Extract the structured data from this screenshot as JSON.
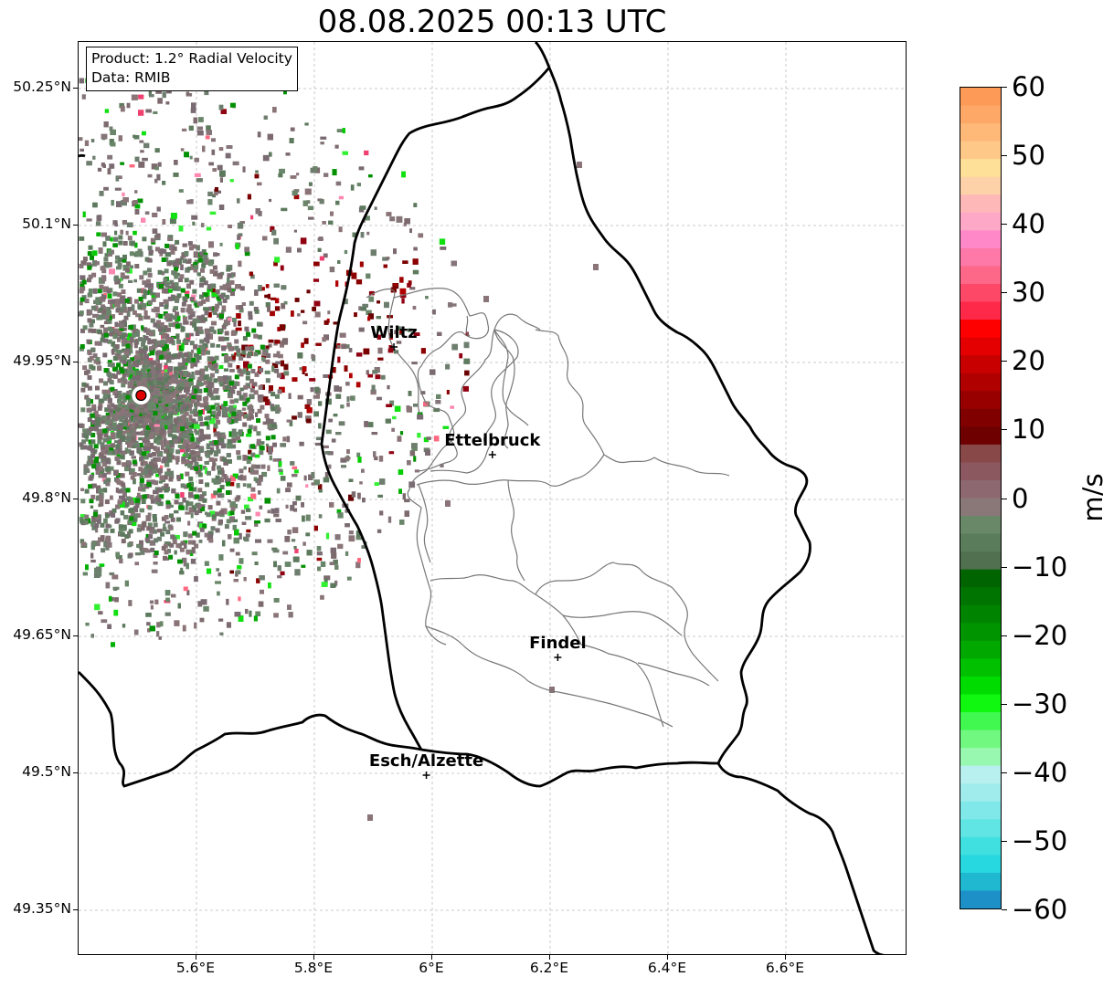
{
  "title": "08.08.2025 00:13 UTC",
  "info": {
    "product": "Product: 1.2° Radial Velocity",
    "data": "Data: RMIB"
  },
  "axes": {
    "lat_ticks": [
      "50.25°N",
      "50.1°N",
      "49.95°N",
      "49.8°N",
      "49.65°N",
      "49.5°N",
      "49.35°N"
    ],
    "lon_ticks": [
      "5.6°E",
      "5.8°E",
      "6°E",
      "6.2°E",
      "6.4°E",
      "6.6°E"
    ]
  },
  "cities": [
    {
      "name": "Wiltz",
      "lon": 5.935,
      "lat": 49.967
    },
    {
      "name": "Ettelbruck",
      "lon": 6.102,
      "lat": 49.849
    },
    {
      "name": "Findel",
      "lon": 6.213,
      "lat": 49.627
    },
    {
      "name": "Esch/Alzette",
      "lon": 5.99,
      "lat": 49.498
    }
  ],
  "radar_site": {
    "lon": 5.506,
    "lat": 49.914,
    "color": "#e00000"
  },
  "colorbar": {
    "unit": "m/s",
    "min": -60,
    "max": 60,
    "tick_labels": [
      "60",
      "50",
      "40",
      "30",
      "20",
      "10",
      "0",
      "−10",
      "−20",
      "−30",
      "−40",
      "−50",
      "−60"
    ],
    "colors_top_to_bottom": [
      "#fe9a58",
      "#fea868",
      "#feb878",
      "#fec888",
      "#fee098",
      "#fed2a8",
      "#feb8b8",
      "#fea8c8",
      "#fe88c8",
      "#fe78a8",
      "#fe6888",
      "#fe4868",
      "#fe2848",
      "#fe0000",
      "#e40000",
      "#c80000",
      "#b00000",
      "#980000",
      "#800000",
      "#6e0000",
      "#884848",
      "#8c5860",
      "#8e6870",
      "#8a7878",
      "#688868",
      "#5a7c5a",
      "#507050",
      "#006400",
      "#007400",
      "#008400",
      "#009400",
      "#00a800",
      "#00c000",
      "#00dc00",
      "#10f810",
      "#40f850",
      "#70f880",
      "#98f8b0",
      "#b8f0f0",
      "#a0ecec",
      "#80e8e8",
      "#60e4e4",
      "#40e0e0",
      "#28d8e0",
      "#20b8d0",
      "#1e90c8"
    ]
  },
  "map_colors": {
    "country_border": "#000000",
    "district_border": "#777777",
    "grid": "#bbbbbb"
  }
}
